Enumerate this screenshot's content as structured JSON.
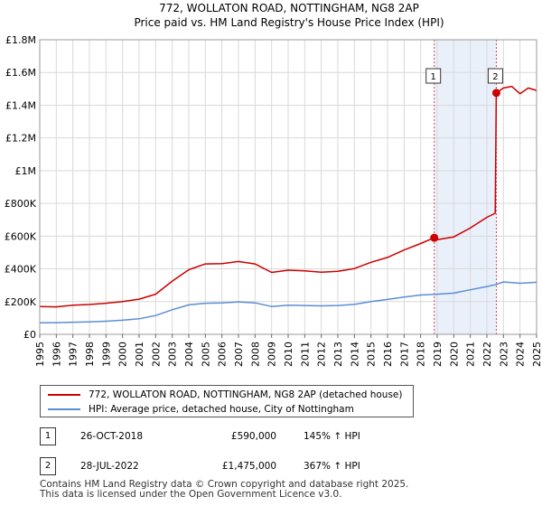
{
  "chart_data": {
    "type": "line",
    "title": "772, WOLLATON ROAD, NOTTINGHAM, NG8 2AP",
    "subtitle": "Price paid vs. HM Land Registry's House Price Index (HPI)",
    "xlim": [
      1995,
      2025
    ],
    "ylim": [
      0,
      1800000
    ],
    "x_ticks": [
      1995,
      1996,
      1997,
      1998,
      1999,
      2000,
      2001,
      2002,
      2003,
      2004,
      2005,
      2006,
      2007,
      2008,
      2009,
      2010,
      2011,
      2012,
      2013,
      2014,
      2015,
      2016,
      2017,
      2018,
      2019,
      2020,
      2021,
      2022,
      2023,
      2024,
      2025
    ],
    "y_ticks": [
      {
        "value": 0,
        "label": "£0"
      },
      {
        "value": 200000,
        "label": "£200K"
      },
      {
        "value": 400000,
        "label": "£400K"
      },
      {
        "value": 600000,
        "label": "£600K"
      },
      {
        "value": 800000,
        "label": "£800K"
      },
      {
        "value": 1000000,
        "label": "£1M"
      },
      {
        "value": 1200000,
        "label": "£1.2M"
      },
      {
        "value": 1400000,
        "label": "£1.4M"
      },
      {
        "value": 1600000,
        "label": "£1.6M"
      },
      {
        "value": 1800000,
        "label": "£1.8M"
      }
    ],
    "shaded_range": [
      2018.82,
      2022.57
    ],
    "markers": [
      {
        "label": "1",
        "x": 2018.82,
        "y": 590000
      },
      {
        "label": "2",
        "x": 2022.57,
        "y": 1475000
      }
    ],
    "series": [
      {
        "name": "772, WOLLATON ROAD, NOTTINGHAM, NG8 2AP (detached house)",
        "color": "#cc0000",
        "points": [
          [
            1995,
            170000
          ],
          [
            1996,
            168000
          ],
          [
            1997,
            178000
          ],
          [
            1998,
            182000
          ],
          [
            1999,
            190000
          ],
          [
            2000,
            200000
          ],
          [
            2001,
            215000
          ],
          [
            2002,
            245000
          ],
          [
            2003,
            325000
          ],
          [
            2004,
            395000
          ],
          [
            2005,
            430000
          ],
          [
            2006,
            432000
          ],
          [
            2007,
            445000
          ],
          [
            2008,
            430000
          ],
          [
            2009,
            378000
          ],
          [
            2010,
            392000
          ],
          [
            2011,
            388000
          ],
          [
            2012,
            380000
          ],
          [
            2013,
            385000
          ],
          [
            2014,
            402000
          ],
          [
            2015,
            440000
          ],
          [
            2016,
            470000
          ],
          [
            2017,
            515000
          ],
          [
            2018,
            555000
          ],
          [
            2018.82,
            590000
          ],
          [
            2019,
            578000
          ],
          [
            2020,
            595000
          ],
          [
            2021,
            650000
          ],
          [
            2022,
            715000
          ],
          [
            2022.5,
            740000
          ],
          [
            2022.57,
            1475000
          ],
          [
            2023,
            1505000
          ],
          [
            2023.5,
            1515000
          ],
          [
            2024,
            1470000
          ],
          [
            2024.5,
            1505000
          ],
          [
            2025,
            1490000
          ]
        ]
      },
      {
        "name": "HPI: Average price, detached house, City of Nottingham",
        "color": "#5b8ed6",
        "points": [
          [
            1995,
            70000
          ],
          [
            1996,
            71000
          ],
          [
            1997,
            74000
          ],
          [
            1998,
            76000
          ],
          [
            1999,
            80000
          ],
          [
            2000,
            86000
          ],
          [
            2001,
            95000
          ],
          [
            2002,
            115000
          ],
          [
            2003,
            150000
          ],
          [
            2004,
            180000
          ],
          [
            2005,
            190000
          ],
          [
            2006,
            192000
          ],
          [
            2007,
            198000
          ],
          [
            2008,
            192000
          ],
          [
            2009,
            170000
          ],
          [
            2010,
            178000
          ],
          [
            2011,
            176000
          ],
          [
            2012,
            174000
          ],
          [
            2013,
            176000
          ],
          [
            2014,
            183000
          ],
          [
            2015,
            200000
          ],
          [
            2016,
            213000
          ],
          [
            2017,
            228000
          ],
          [
            2018,
            240000
          ],
          [
            2019,
            245000
          ],
          [
            2020,
            252000
          ],
          [
            2021,
            272000
          ],
          [
            2022,
            292000
          ],
          [
            2022.57,
            305000
          ],
          [
            2023,
            320000
          ],
          [
            2024,
            312000
          ],
          [
            2025,
            318000
          ]
        ]
      }
    ]
  },
  "legend": {
    "items": [
      {
        "label": "772, WOLLATON ROAD, NOTTINGHAM, NG8 2AP (detached house)",
        "color": "#cc0000"
      },
      {
        "label": "HPI: Average price, detached house, City of Nottingham",
        "color": "#5b8ed6"
      }
    ]
  },
  "sales": [
    {
      "num": "1",
      "date": "26-OCT-2018",
      "price": "£590,000",
      "hpi": "145% ↑ HPI"
    },
    {
      "num": "2",
      "date": "28-JUL-2022",
      "price": "£1,475,000",
      "hpi": "367% ↑ HPI"
    }
  ],
  "footer": {
    "line1": "Contains HM Land Registry data © Crown copyright and database right 2025.",
    "line2": "This data is licensed under the Open Government Licence v3.0."
  }
}
